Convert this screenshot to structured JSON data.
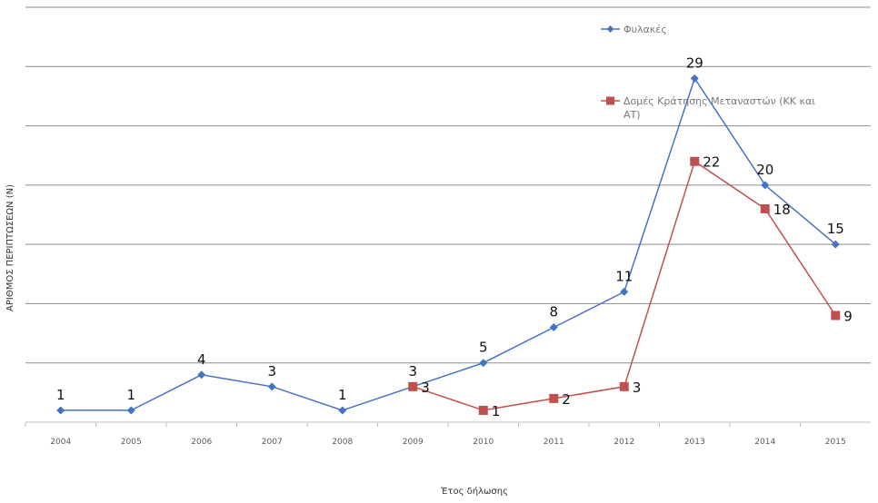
{
  "chart_data": {
    "type": "line",
    "xlabel": "Έτος δήλωσης",
    "ylabel": "ΑΡΙΘΜΟΣ ΠΕΡΙΠΤΩΣΕΩΝ (Ν)",
    "ylim": [
      0,
      35
    ],
    "grid": true,
    "legend_position": "top-right",
    "categories": [
      "2004",
      "2005",
      "2006",
      "2007",
      "2008",
      "2009",
      "2010",
      "2011",
      "2012",
      "2013",
      "2014",
      "2015"
    ],
    "series": [
      {
        "name": "Φυλακές",
        "color": "#4472C4",
        "marker": "diamond",
        "values": [
          1,
          1,
          4,
          3,
          1,
          3,
          5,
          8,
          11,
          29,
          20,
          15
        ]
      },
      {
        "name": "Δομές Κράτησης Μεταναστών (ΚΚ και ΑΤ)",
        "color": "#C0504D",
        "marker": "square",
        "values": [
          null,
          null,
          null,
          null,
          null,
          3,
          1,
          2,
          3,
          22,
          18,
          9
        ]
      }
    ]
  }
}
